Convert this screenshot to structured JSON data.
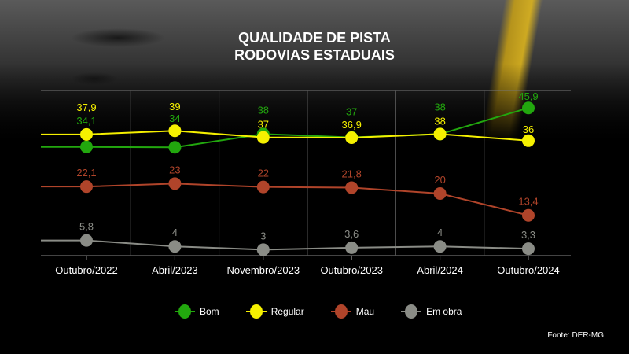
{
  "title_lines": [
    "QUALIDADE DE PISTA",
    "RODOVIAS ESTADUAIS"
  ],
  "source": "Fonte: DER-MG",
  "chart_data": {
    "type": "line",
    "title": "QUALIDADE DE PISTA RODOVIAS ESTADUAIS",
    "categories": [
      "Outubro/2022",
      "Abril/2023",
      "Novembro/2023",
      "Outubro/2023",
      "Abril/2024",
      "Outubro/2024"
    ],
    "series": [
      {
        "name": "Bom",
        "color": "#22a70e",
        "values": [
          34.1,
          34,
          38,
          37,
          38,
          45.9
        ],
        "labels": [
          "34,1",
          "34",
          "38",
          "37",
          "38",
          "45,9"
        ]
      },
      {
        "name": "Regular",
        "color": "#f5f000",
        "values": [
          37.9,
          39,
          37,
          36.9,
          38,
          36
        ],
        "labels": [
          "37,9",
          "39",
          "37",
          "36,9",
          "38",
          "36"
        ]
      },
      {
        "name": "Mau",
        "color": "#b0442a",
        "values": [
          22.1,
          23,
          22,
          21.8,
          20,
          13.4
        ],
        "labels": [
          "22,1",
          "23",
          "22",
          "21,8",
          "20",
          "13,4"
        ]
      },
      {
        "name": "Em obra",
        "color": "#8a8c86",
        "values": [
          5.8,
          4,
          3,
          3.6,
          4,
          3.3
        ],
        "labels": [
          "5,8",
          "4",
          "3",
          "3,6",
          "4",
          "3,3"
        ]
      }
    ],
    "legend_position": "bottom",
    "grid": "vertical",
    "ylim": [
      0,
      50
    ]
  }
}
